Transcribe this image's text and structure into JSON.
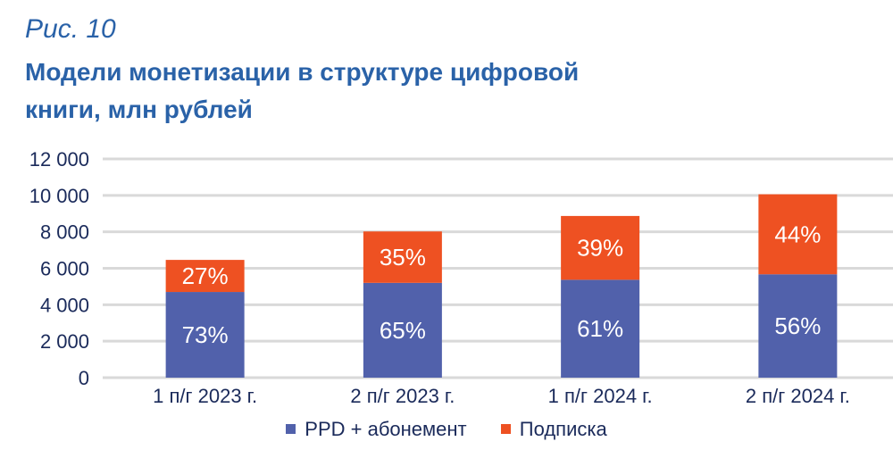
{
  "figure_label": "Рис. 10",
  "chart_data": {
    "type": "bar",
    "stacked": true,
    "title": "Модели монетизации в структуре цифровой книги, млн рублей",
    "categories": [
      "1 п/г 2023 г.",
      "2 п/г 2023 г.",
      "1 п/г 2024 г.",
      "2 п/г 2024 г."
    ],
    "series": [
      {
        "name": "PPD + абонемент",
        "color": "#5161ab",
        "values": [
          4700,
          5200,
          5370,
          5670
        ],
        "labels": [
          "73%",
          "65%",
          "61%",
          "56%"
        ]
      },
      {
        "name": "Подписка",
        "color": "#ee5122",
        "values": [
          1760,
          2820,
          3500,
          4390
        ],
        "labels": [
          "27%",
          "35%",
          "39%",
          "44%"
        ]
      }
    ],
    "ylim": [
      0,
      12000
    ],
    "yticks": [
      0,
      2000,
      4000,
      6000,
      8000,
      10000,
      12000
    ],
    "ytick_labels": [
      "0",
      "2 000",
      "4 000",
      "6 000",
      "8 000",
      "10 000",
      "12 000"
    ],
    "grid": true,
    "legend_position": "bottom",
    "xlabel": "",
    "ylabel": ""
  }
}
